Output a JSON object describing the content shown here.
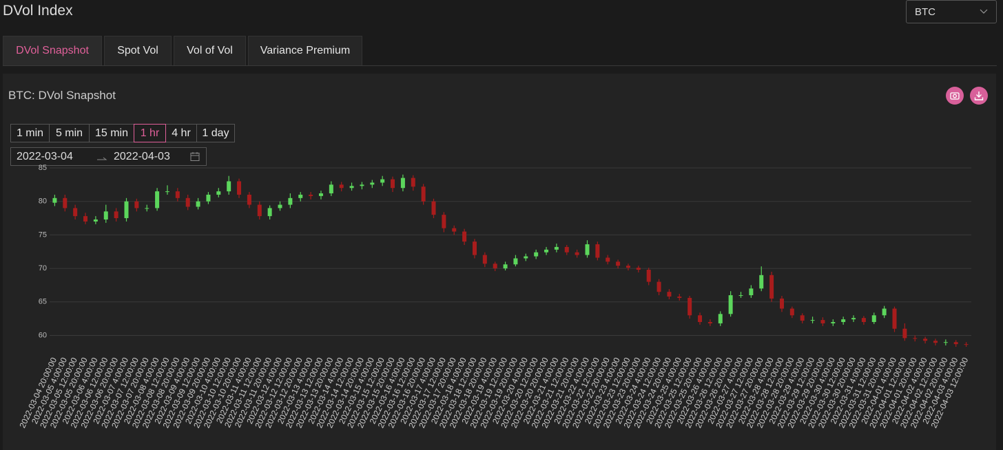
{
  "header": {
    "title": "DVol Index",
    "select": "BTC"
  },
  "tabs": [
    "DVol Snapshot",
    "Spot Vol",
    "Vol of Vol",
    "Variance Premium"
  ],
  "active_tab": 0,
  "panel": {
    "intervals": [
      "1 min",
      "5 min",
      "15 min",
      "1 hr",
      "4 hr",
      "1 day"
    ],
    "active_interval": 3,
    "date_start": "2022-03-04",
    "date_end": "2022-04-03"
  },
  "chart_data": {
    "type": "candlestick",
    "title": "BTC: DVol Snapshot",
    "categories": [
      "2022-03-04 20:00:00",
      "2022-03-05 4:00:00",
      "2022-03-05 12:00:00",
      "2022-03-05 20:00:00",
      "2022-03-06 4:00:00",
      "2022-03-06 12:00:00",
      "2022-03-06 20:00:00",
      "2022-03-07 4:00:00",
      "2022-03-07 12:00:00",
      "2022-03-07 20:00:00",
      "2022-03-08 4:00:00",
      "2022-03-08 12:00:00",
      "2022-03-08 20:00:00",
      "2022-03-09 4:00:00",
      "2022-03-09 12:00:00",
      "2022-03-09 20:00:00",
      "2022-03-10 4:00:00",
      "2022-03-10 12:00:00",
      "2022-03-10 20:00:00",
      "2022-03-11 4:00:00",
      "2022-03-11 12:00:00",
      "2022-03-11 20:00:00",
      "2022-03-12 4:00:00",
      "2022-03-12 12:00:00",
      "2022-03-12 20:00:00",
      "2022-03-13 4:00:00",
      "2022-03-13 12:00:00",
      "2022-03-13 20:00:00",
      "2022-03-14 4:00:00",
      "2022-03-14 12:00:00",
      "2022-03-14 20:00:00",
      "2022-03-15 4:00:00",
      "2022-03-15 12:00:00",
      "2022-03-15 20:00:00",
      "2022-03-16 4:00:00",
      "2022-03-16 12:00:00",
      "2022-03-16 20:00:00",
      "2022-03-17 4:00:00",
      "2022-03-17 12:00:00",
      "2022-03-17 20:00:00",
      "2022-03-18 4:00:00",
      "2022-03-18 12:00:00",
      "2022-03-18 20:00:00",
      "2022-03-19 4:00:00",
      "2022-03-19 12:00:00",
      "2022-03-19 20:00:00",
      "2022-03-20 4:00:00",
      "2022-03-20 12:00:00",
      "2022-03-20 20:00:00",
      "2022-03-21 4:00:00",
      "2022-03-21 12:00:00",
      "2022-03-21 20:00:00",
      "2022-03-22 4:00:00",
      "2022-03-22 12:00:00",
      "2022-03-22 20:00:00",
      "2022-03-23 4:00:00",
      "2022-03-23 12:00:00",
      "2022-03-23 20:00:00",
      "2022-03-24 4:00:00",
      "2022-03-24 12:00:00",
      "2022-03-24 20:00:00",
      "2022-03-25 4:00:00",
      "2022-03-25 12:00:00",
      "2022-03-25 20:00:00",
      "2022-03-26 4:00:00",
      "2022-03-26 12:00:00",
      "2022-03-26 20:00:00",
      "2022-03-27 4:00:00",
      "2022-03-27 12:00:00",
      "2022-03-27 20:00:00",
      "2022-03-28 4:00:00",
      "2022-03-28 12:00:00",
      "2022-03-28 20:00:00",
      "2022-03-29 4:00:00",
      "2022-03-29 12:00:00",
      "2022-03-29 20:00:00",
      "2022-03-30 4:00:00",
      "2022-03-30 12:00:00",
      "2022-03-30 20:00:00",
      "2022-03-31 4:00:00",
      "2022-03-31 12:00:00",
      "2022-03-31 20:00:00",
      "2022-04-01 4:00:00",
      "2022-04-01 12:00:00",
      "2022-04-01 20:00:00",
      "2022-04-02 4:00:00",
      "2022-04-02 12:00:00",
      "2022-04-02 20:00:00",
      "2022-04-03 4:00:00",
      "2022-04-03 12:00:00"
    ],
    "open": [
      79.8,
      80.5,
      79,
      77.8,
      77,
      77.3,
      78.5,
      77.5,
      80,
      79,
      79,
      81.5,
      81.5,
      80.5,
      79.2,
      80,
      81,
      81.5,
      83,
      81,
      79.5,
      77.8,
      79,
      79.5,
      80.5,
      81,
      80.8,
      81.2,
      82.5,
      82,
      82.3,
      82.5,
      82.8,
      83.3,
      82,
      83.5,
      82.2,
      80,
      78,
      76,
      75.5,
      74,
      72,
      70.7,
      70,
      70.6,
      71.5,
      71.8,
      72.4,
      72.8,
      73.2,
      72.4,
      72,
      73.6,
      71.6,
      71,
      70.4,
      70.1,
      69.8,
      68,
      66.5,
      65.8,
      65.6,
      63,
      62,
      61.8,
      63.2,
      66,
      66,
      67,
      69,
      65.5,
      64,
      63,
      62.2,
      62.3,
      61.8,
      62,
      62.4,
      62.6,
      62,
      63,
      64,
      61,
      59.6,
      59.5,
      59.2,
      58.9,
      59,
      58.7
    ],
    "high": [
      81,
      81,
      79.5,
      78.3,
      77.8,
      79.5,
      79,
      80.5,
      80.4,
      79.5,
      82,
      82.4,
      82,
      81,
      80.5,
      81.4,
      82,
      83.8,
      83.4,
      81.4,
      80,
      79.4,
      80,
      81.2,
      81.4,
      81.4,
      81.6,
      83,
      82.9,
      82.8,
      82.9,
      83.2,
      83.8,
      83.7,
      84,
      83.9,
      82.6,
      80.4,
      78.4,
      76.4,
      75.9,
      74.4,
      72.4,
      71,
      71,
      72,
      72.2,
      72.8,
      73.2,
      73.7,
      73.5,
      72.8,
      74.2,
      74,
      72,
      71.3,
      70.7,
      70.4,
      70.1,
      68.4,
      66.9,
      66.2,
      65.9,
      63.4,
      62.4,
      63.6,
      66.6,
      66.5,
      67.5,
      70.3,
      69.5,
      65.9,
      64.3,
      63.3,
      62.8,
      62.7,
      62.4,
      62.8,
      63,
      62.9,
      63.4,
      64.4,
      64.3,
      61.8,
      60,
      59.8,
      59.5,
      59.4,
      59.3,
      59
    ],
    "low": [
      79.3,
      78.5,
      77.3,
      76.6,
      76.6,
      76.8,
      77,
      77,
      78.5,
      78.5,
      78.6,
      81,
      80,
      78.7,
      78.8,
      79.6,
      80.6,
      81,
      80.5,
      79,
      77.3,
      77.3,
      78.6,
      79,
      80,
      80.3,
      80.3,
      80.8,
      81.5,
      81.6,
      81.8,
      82,
      82.3,
      81.4,
      81.5,
      81.6,
      79.5,
      77.5,
      75.4,
      75,
      73.5,
      71.5,
      70.2,
      69.6,
      69.7,
      70.3,
      71.1,
      71.4,
      72,
      72.4,
      72,
      71.6,
      71.6,
      71.2,
      70.6,
      70,
      69.7,
      69.4,
      67.5,
      66,
      65.4,
      65.2,
      62.5,
      61.6,
      61.4,
      61.4,
      62.8,
      65.6,
      65.6,
      66.6,
      65,
      63.5,
      62.6,
      61.8,
      61.8,
      61.4,
      61.4,
      61.6,
      62,
      61.6,
      61.7,
      62.6,
      60.5,
      59.2,
      59.1,
      58.8,
      58.5,
      58.5,
      58.3,
      58.3
    ],
    "close": [
      80.5,
      79,
      77.8,
      77,
      77.3,
      78.5,
      77.5,
      80,
      79,
      79,
      81.5,
      81.5,
      80.5,
      79.2,
      80,
      81,
      81.5,
      83,
      81,
      79.5,
      77.8,
      79,
      79.5,
      80.5,
      81,
      80.8,
      81.2,
      82.5,
      82,
      82.3,
      82.5,
      82.8,
      83.3,
      82,
      83.5,
      82.2,
      80,
      78,
      76,
      75.5,
      74,
      72,
      70.7,
      70,
      70.6,
      71.5,
      71.8,
      72.4,
      72.8,
      73.2,
      72.4,
      72,
      73.6,
      71.6,
      71,
      70.4,
      70.1,
      69.8,
      68,
      66.5,
      65.8,
      65.6,
      63,
      62,
      61.8,
      63.2,
      66,
      66,
      67,
      69,
      65.5,
      64,
      63,
      62.2,
      62.3,
      61.8,
      62,
      62.4,
      62.6,
      62,
      63,
      64,
      61,
      59.6,
      59.5,
      59.2,
      58.9,
      59,
      58.7,
      58.6
    ],
    "up_color": "#5cd65c",
    "down_color": "#a81c1c",
    "ylim": [
      58.2,
      85
    ],
    "yticks": [
      60,
      65,
      70,
      75,
      80,
      85
    ],
    "grid": true
  }
}
